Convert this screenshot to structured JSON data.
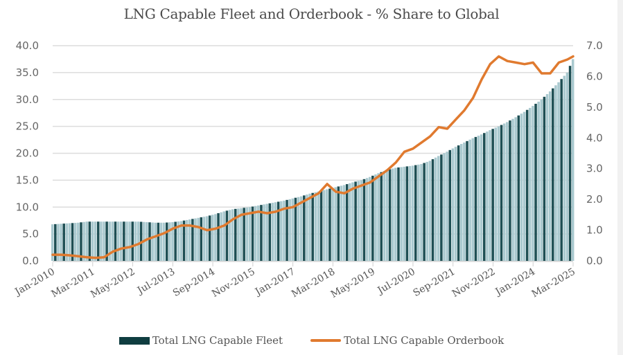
{
  "chart_data": {
    "type": "bar+line",
    "title": "LNG Capable Fleet and Orderbook - % Share to Global",
    "xlabel": "",
    "ylabel_left": "",
    "ylabel_right": "",
    "ylim_left": [
      0,
      40
    ],
    "ylim_right": [
      0,
      7
    ],
    "yticks_left": [
      "0.0",
      "5.0",
      "10.0",
      "15.0",
      "20.0",
      "25.0",
      "30.0",
      "35.0",
      "40.0"
    ],
    "yticks_right": [
      "0.0",
      "1.0",
      "2.0",
      "3.0",
      "4.0",
      "5.0",
      "6.0",
      "7.0"
    ],
    "xtick_labels": [
      "Jan-2010",
      "Mar-2011",
      "May-2012",
      "Jul-2013",
      "Sep-2014",
      "Nov-2015",
      "Jan-2017",
      "Mar-2018",
      "May-2019",
      "Jul-2020",
      "Sep-2021",
      "Nov-2022",
      "Jan-2024",
      "Mar-2025"
    ],
    "grid": true,
    "legend_position": "bottom",
    "x_start": "Jan-2010",
    "x_end": "Mar-2025",
    "x_step": "quarterly",
    "x": [
      "Jan-2010",
      "Apr-2010",
      "Jul-2010",
      "Oct-2010",
      "Jan-2011",
      "Apr-2011",
      "Jul-2011",
      "Oct-2011",
      "Jan-2012",
      "Apr-2012",
      "Jul-2012",
      "Oct-2012",
      "Jan-2013",
      "Apr-2013",
      "Jul-2013",
      "Oct-2013",
      "Jan-2014",
      "Apr-2014",
      "Jul-2014",
      "Oct-2014",
      "Jan-2015",
      "Apr-2015",
      "Jul-2015",
      "Oct-2015",
      "Jan-2016",
      "Apr-2016",
      "Jul-2016",
      "Oct-2016",
      "Jan-2017",
      "Apr-2017",
      "Jul-2017",
      "Oct-2017",
      "Jan-2018",
      "Apr-2018",
      "Jul-2018",
      "Oct-2018",
      "Jan-2019",
      "Apr-2019",
      "Jul-2019",
      "Oct-2019",
      "Jan-2020",
      "Apr-2020",
      "Jul-2020",
      "Oct-2020",
      "Jan-2021",
      "Apr-2021",
      "Jul-2021",
      "Oct-2021",
      "Jan-2022",
      "Apr-2022",
      "Jul-2022",
      "Oct-2022",
      "Jan-2023",
      "Apr-2023",
      "Jul-2023",
      "Oct-2023",
      "Jan-2024",
      "Apr-2024",
      "Jul-2024",
      "Oct-2024",
      "Jan-2025",
      "Mar-2025"
    ],
    "series": [
      {
        "name": "Total LNG Capable Fleet",
        "type": "bar",
        "axis": "left",
        "color": "#0f3d40",
        "values": [
          6.8,
          6.9,
          7.0,
          7.1,
          7.3,
          7.3,
          7.3,
          7.3,
          7.3,
          7.3,
          7.3,
          7.2,
          7.1,
          7.1,
          7.2,
          7.4,
          7.7,
          8.0,
          8.3,
          8.7,
          9.2,
          9.6,
          9.8,
          10.0,
          10.3,
          10.6,
          10.9,
          11.2,
          11.6,
          12.0,
          12.5,
          12.9,
          13.3,
          13.7,
          14.1,
          14.6,
          15.0,
          15.6,
          16.3,
          16.9,
          17.3,
          17.5,
          17.7,
          18.0,
          18.6,
          19.5,
          20.3,
          21.2,
          22.0,
          22.8,
          23.5,
          24.3,
          25.0,
          25.8,
          26.7,
          27.7,
          28.8,
          30.0,
          31.5,
          33.2,
          35.0,
          37.5
        ]
      },
      {
        "name": "Total LNG Capable Orderbook",
        "type": "line",
        "axis": "right",
        "color": "#e07a2f",
        "values": [
          0.2,
          0.2,
          0.18,
          0.15,
          0.12,
          0.1,
          0.12,
          0.3,
          0.4,
          0.45,
          0.55,
          0.7,
          0.8,
          0.9,
          1.05,
          1.15,
          1.15,
          1.1,
          1.0,
          1.05,
          1.15,
          1.35,
          1.5,
          1.55,
          1.6,
          1.55,
          1.6,
          1.7,
          1.75,
          1.9,
          2.05,
          2.2,
          2.5,
          2.25,
          2.2,
          2.35,
          2.45,
          2.55,
          2.75,
          2.95,
          3.2,
          3.55,
          3.65,
          3.85,
          4.05,
          4.35,
          4.3,
          4.6,
          4.9,
          5.3,
          5.9,
          6.4,
          6.65,
          6.5,
          6.45,
          6.4,
          6.45,
          6.1,
          6.1,
          6.45,
          6.55,
          6.65
        ]
      }
    ]
  },
  "legend": {
    "fleet_label": "Total LNG Capable Fleet",
    "orderbook_label": "Total LNG Capable Orderbook"
  }
}
